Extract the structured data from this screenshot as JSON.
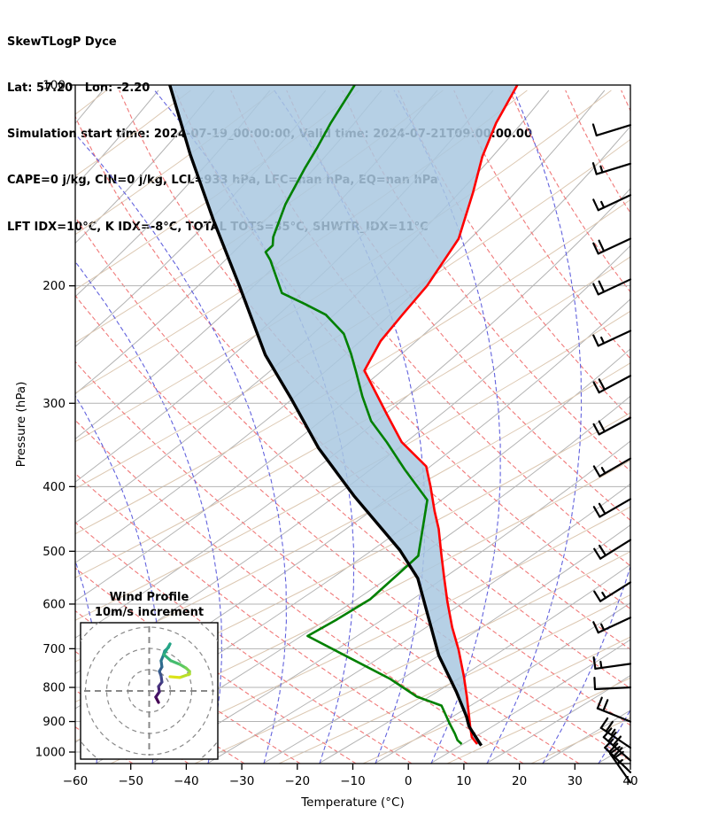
{
  "header": {
    "lines": [
      "SkewTLogP Dyce",
      "Lat: 57.20   Lon: -2.20",
      "Simulation start time: 2024-07-19_00:00:00, Valid time: 2024-07-21T09:00:00.00",
      "CAPE=0 j/kg, CIN=0 j/kg, LCL=933 hPa, LFC=nan hPa, EQ=nan hPa",
      "LFT IDX=10°C, K IDX=-8°C, TOTAL TOTS=35°C, SHWTR_IDX=11°C"
    ]
  },
  "chart_data": {
    "type": "skewt-logp",
    "title": "SkewTLogP Dyce",
    "xlabel": "Temperature (°C)",
    "ylabel": "Pressure (hPa)",
    "xlim": [
      -60,
      40
    ],
    "x_ticks": [
      -60,
      -50,
      -40,
      -30,
      -20,
      -10,
      0,
      10,
      20,
      30,
      40
    ],
    "y_ticks": [
      100,
      200,
      300,
      400,
      500,
      600,
      700,
      800,
      900,
      1000
    ],
    "pressure_log_scale": true,
    "grid": true,
    "colors": {
      "temperature": "#ff0000",
      "dewpoint": "#008000",
      "parcel": "#000000",
      "shading": "#a9c8e1",
      "isotherm_gray": "#b3b3b3",
      "isotherm_tan": "#dcc8b2",
      "dry_adiabat": "#f07878",
      "moist_adiabat": "#6262dd",
      "pressure_grid": "#b3b3b3"
    },
    "series": [
      {
        "name": "temperature",
        "color": "#ff0000",
        "points": [
          [
            100,
            -61.0
          ],
          [
            114,
            -60.3
          ],
          [
            128,
            -58.8
          ],
          [
            145,
            -56.2
          ],
          [
            170,
            -53.3
          ],
          [
            200,
            -53.4
          ],
          [
            221,
            -54.4
          ],
          [
            242,
            -55.2
          ],
          [
            268,
            -54.6
          ],
          [
            311,
            -45.5
          ],
          [
            343,
            -39.4
          ],
          [
            373,
            -32.1
          ],
          [
            400,
            -28.9
          ],
          [
            435,
            -25.3
          ],
          [
            463,
            -22.4
          ],
          [
            503,
            -19.1
          ],
          [
            547,
            -15.7
          ],
          [
            595,
            -12.2
          ],
          [
            650,
            -8.3
          ],
          [
            702,
            -4.5
          ],
          [
            771,
            -0.3
          ],
          [
            826,
            2.6
          ],
          [
            877,
            5.0
          ],
          [
            917,
            6.8
          ],
          [
            950,
            8.3
          ],
          [
            973,
            10.1
          ]
        ]
      },
      {
        "name": "dewpoint",
        "color": "#008000",
        "points": [
          [
            100,
            -90.3
          ],
          [
            114,
            -90.1
          ],
          [
            124,
            -89.6
          ],
          [
            133,
            -89.4
          ],
          [
            151,
            -88.6
          ],
          [
            169,
            -86.9
          ],
          [
            174,
            -86.0
          ],
          [
            178,
            -86.5
          ],
          [
            183,
            -84.7
          ],
          [
            205,
            -78.7
          ],
          [
            213,
            -73.2
          ],
          [
            221,
            -68.2
          ],
          [
            236,
            -62.7
          ],
          [
            253,
            -59.0
          ],
          [
            269,
            -56.0
          ],
          [
            293,
            -51.9
          ],
          [
            319,
            -47.4
          ],
          [
            343,
            -42.1
          ],
          [
            377,
            -35.6
          ],
          [
            419,
            -27.9
          ],
          [
            508,
            -22.9
          ],
          [
            540,
            -24.3
          ],
          [
            590,
            -26.4
          ],
          [
            634,
            -30.1
          ],
          [
            670,
            -33.3
          ],
          [
            728,
            -22.1
          ],
          [
            777,
            -13.3
          ],
          [
            826,
            -6.4
          ],
          [
            852,
            -0.9
          ],
          [
            905,
            2.6
          ],
          [
            938,
            4.8
          ],
          [
            960,
            6.1
          ],
          [
            973,
            7.3
          ]
        ]
      },
      {
        "name": "parcel",
        "color": "#000000",
        "points": [
          [
            100,
            -123.6
          ],
          [
            127,
            -111.7
          ],
          [
            160,
            -99.5
          ],
          [
            200,
            -87.2
          ],
          [
            254,
            -74.3
          ],
          [
            296,
            -64.3
          ],
          [
            350,
            -53.7
          ],
          [
            413,
            -41.6
          ],
          [
            498,
            -26.9
          ],
          [
            549,
            -20.3
          ],
          [
            716,
            -7.4
          ],
          [
            812,
            0.1
          ],
          [
            885,
            4.9
          ],
          [
            915,
            6.5
          ],
          [
            978,
            11.0
          ]
        ]
      }
    ],
    "shading": {
      "between": [
        "parcel",
        "temperature"
      ],
      "pinch_pressure_hPa": 916,
      "color": "#a9c8e1"
    },
    "wind_barbs": {
      "x_anchor_right": 712,
      "levels": [
        {
          "p": 119,
          "angle": 17,
          "full": 1,
          "half": 0
        },
        {
          "p": 136,
          "angle": 17,
          "full": 1,
          "half": 1
        },
        {
          "p": 154,
          "angle": 25,
          "full": 1,
          "half": 1
        },
        {
          "p": 179,
          "angle": 25,
          "full": 2,
          "half": 0
        },
        {
          "p": 206,
          "angle": 25,
          "full": 2,
          "half": 0
        },
        {
          "p": 246,
          "angle": 25,
          "full": 1,
          "half": 1
        },
        {
          "p": 289,
          "angle": 28,
          "full": 2,
          "half": 0
        },
        {
          "p": 334,
          "angle": 28,
          "full": 2,
          "half": 0
        },
        {
          "p": 386,
          "angle": 30,
          "full": 1,
          "half": 1
        },
        {
          "p": 444,
          "angle": 30,
          "full": 2,
          "half": 0
        },
        {
          "p": 513,
          "angle": 32,
          "full": 2,
          "half": 0
        },
        {
          "p": 594,
          "angle": 32,
          "full": 1,
          "half": 1
        },
        {
          "p": 662,
          "angle": 25,
          "full": 1,
          "half": 1
        },
        {
          "p": 750,
          "angle": 8,
          "full": 1,
          "half": 1
        },
        {
          "p": 805,
          "angle": 3,
          "full": 1,
          "half": 0
        },
        {
          "p": 860,
          "angle": -22,
          "full": 2,
          "half": 0
        },
        {
          "p": 920,
          "angle": -34,
          "full": 2,
          "half": 1
        },
        {
          "p": 950,
          "angle": -41,
          "full": 3,
          "half": 0
        },
        {
          "p": 985,
          "angle": -44,
          "full": 3,
          "half": 0
        },
        {
          "p": 1005,
          "angle": -55,
          "full": 2,
          "half": 1
        }
      ]
    },
    "hodograph": {
      "title_line1": "Wind Profile",
      "title_line2": "10m/s increment",
      "ring_increment_ms": 10,
      "rings_ms": [
        10,
        20,
        30,
        40
      ],
      "trace_uv_ms": [
        [
          4.4,
          -5.4
        ],
        [
          3.1,
          -2.9
        ],
        [
          4.8,
          -0.4
        ],
        [
          4.4,
          2.1
        ],
        [
          6.0,
          4.2
        ],
        [
          5.6,
          7.1
        ],
        [
          4.8,
          9.2
        ],
        [
          6.0,
          11.3
        ],
        [
          5.6,
          14.2
        ],
        [
          6.5,
          16.3
        ],
        [
          7.3,
          18.8
        ],
        [
          9.0,
          20.4
        ],
        [
          9.8,
          22.1
        ],
        [
          6.9,
          17.1
        ],
        [
          10.2,
          14.2
        ],
        [
          14.4,
          12.5
        ],
        [
          17.3,
          10.8
        ],
        [
          19.0,
          9.2
        ],
        [
          19.0,
          7.9
        ],
        [
          14.4,
          6.3
        ],
        [
          9.8,
          6.7
        ]
      ],
      "trace_colors": [
        "#440154",
        "#471365",
        "#482475",
        "#46337e",
        "#414487",
        "#3b528b",
        "#355e8d",
        "#2f6b8e",
        "#2a768e",
        "#25828e",
        "#218e8d",
        "#1f9a8a",
        "#24a585",
        "#32b07c",
        "#45bc6f",
        "#5cc863",
        "#78d152",
        "#97d83f",
        "#b8de2a",
        "#dbe319",
        "#fde725"
      ]
    }
  }
}
